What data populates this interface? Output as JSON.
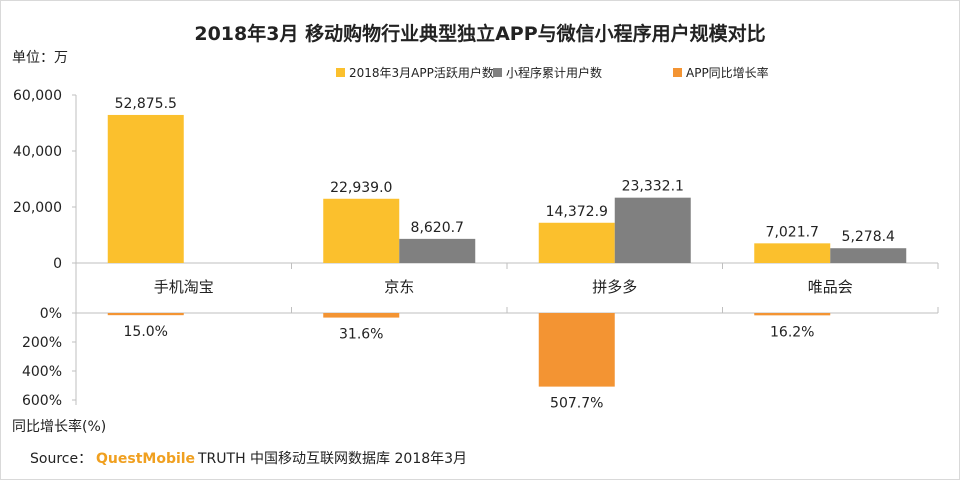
{
  "chart_data": {
    "type": "bar",
    "title": "2018年3月 移动购物行业典型独立APP与微信小程序用户规模对比",
    "ylabel": "单位：万",
    "y2label": "同比增长率(%)",
    "categories": [
      "手机淘宝",
      "京东",
      "拼多多",
      "唯品会"
    ],
    "ylim": [
      0,
      60000
    ],
    "yticks": [
      "60,000",
      "40,000",
      "20,000",
      "0"
    ],
    "y2lim": [
      0,
      600
    ],
    "y2ticks": [
      "0%",
      "200%",
      "400%",
      "600%"
    ],
    "series": [
      {
        "name": "2018年3月APP活跃用户数",
        "color": "#fbc02d",
        "values": [
          52875.5,
          22939.0,
          14372.9,
          7021.7
        ],
        "labels": [
          "52,875.5",
          "22,939.0",
          "14,372.9",
          "7,021.7"
        ]
      },
      {
        "name": "小程序累计用户数",
        "color": "#808080",
        "values": [
          null,
          8620.7,
          23332.1,
          5278.4
        ],
        "labels": [
          "",
          "8,620.7",
          "23,332.1",
          "5,278.4"
        ]
      },
      {
        "name": "APP同比增长率",
        "color": "#f39433",
        "values": [
          15.0,
          31.6,
          507.7,
          16.2
        ],
        "labels": [
          "15.0%",
          "31.6%",
          "507.7%",
          "16.2%"
        ]
      }
    ],
    "grid": false,
    "legend": "top-right"
  },
  "source": {
    "prefix": "Source：",
    "brand": "QuestMobile",
    "rest": "TRUTH 中国移动互联网数据库 2018年3月"
  }
}
